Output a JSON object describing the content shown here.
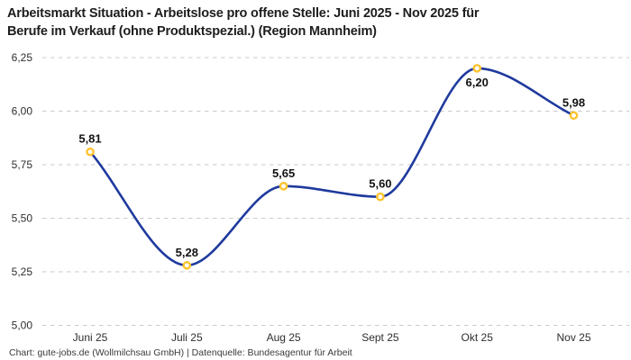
{
  "header": {
    "title_lines": [
      "Arbeitsmarkt Situation - Arbeitslose pro offene Stelle: Juni 2025 - Nov 2025 für",
      "Berufe im Verkauf (ohne Produktspezial.) (Region Mannheim)"
    ]
  },
  "footer": {
    "text": "Chart: gute-jobs.de (Wollmilchsau GmbH) | Datenquelle: Bundesagentur für Arbeit"
  },
  "colors": {
    "background": "#ffffff",
    "line": "#1f3a9e",
    "marker_ring": "#fdc32e",
    "marker_fill": "#ffffff",
    "grid": "#c9c9c9",
    "title_text": "#1d1d1d",
    "tick_text": "#2e2e2e",
    "point_label_text": "#121212",
    "footer_text": "#3a3a3a"
  },
  "chart_data": {
    "type": "line",
    "title": "Arbeitsmarkt Situation - Arbeitslose pro offene Stelle: Juni 2025 - Nov 2025 für Berufe im Verkauf (ohne Produktspezial.) (Region Mannheim)",
    "categories": [
      "Juni 25",
      "Juli 25",
      "Aug 25",
      "Sept 25",
      "Okt 25",
      "Nov 25"
    ],
    "values": [
      5.81,
      5.28,
      5.65,
      5.6,
      6.2,
      5.98
    ],
    "point_labels": [
      "5,81",
      "5,28",
      "5,65",
      "5,60",
      "6,20",
      "5,98"
    ],
    "point_label_positions": [
      "above",
      "above",
      "above",
      "above",
      "below",
      "above"
    ],
    "y_tick_values": [
      5.0,
      5.25,
      5.5,
      5.75,
      6.0,
      6.25
    ],
    "y_tick_labels": [
      "5,00",
      "5,25",
      "5,50",
      "5,75",
      "6,00",
      "6,25"
    ],
    "ylim": [
      5.0,
      6.25
    ],
    "xlabel": "",
    "ylabel": "",
    "legend": "none",
    "grid": "horizontal-dashed",
    "interpolation": "monotone"
  }
}
